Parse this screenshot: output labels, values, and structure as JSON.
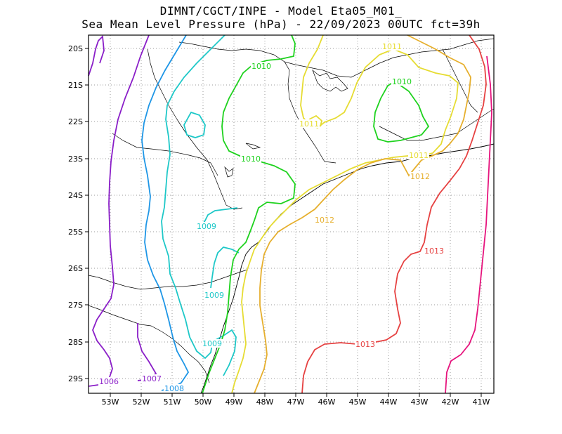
{
  "title": {
    "line1": "DIMNT/CGCT/INPE -  Model Eta05_M01_",
    "line2": "Sea Mean Level Pressure (hPa) - 22/09/2023 00UTC fct=39h"
  },
  "axes": {
    "lon_labels": [
      "53W",
      "52W",
      "51W",
      "50W",
      "49W",
      "48W",
      "47W",
      "46W",
      "45W",
      "44W",
      "43W",
      "42W",
      "41W"
    ],
    "lat_labels": [
      "20S",
      "21S",
      "22S",
      "23S",
      "24S",
      "25S",
      "26S",
      "27S",
      "28S",
      "29S"
    ]
  },
  "colors": {
    "c1006": "#8a1ec8",
    "c1007": "#8a1ec8",
    "c1008": "#1e96e6",
    "c1009": "#1ec8c8",
    "c1010": "#1ed21e",
    "c1011": "#e6dc32",
    "c1012": "#e6af2d",
    "c1013": "#e64141",
    "c1014": "#e6147d",
    "border": "#000000"
  },
  "contour_labels": [
    {
      "id": "l1006",
      "text": "1006",
      "level": "c1006"
    },
    {
      "id": "l1007",
      "text": "1007",
      "level": "c1007"
    },
    {
      "id": "l1008",
      "text": "1008",
      "level": "c1008"
    },
    {
      "id": "l1009a",
      "text": "1009",
      "level": "c1009"
    },
    {
      "id": "l1009b",
      "text": "1009",
      "level": "c1009"
    },
    {
      "id": "l1009c",
      "text": "1009",
      "level": "c1009"
    },
    {
      "id": "l1010a",
      "text": "1010",
      "level": "c1010"
    },
    {
      "id": "l1010b",
      "text": "1010",
      "level": "c1010"
    },
    {
      "id": "l1010c",
      "text": "1010",
      "level": "c1010"
    },
    {
      "id": "l1011a",
      "text": "1011",
      "level": "c1011"
    },
    {
      "id": "l1011b",
      "text": "1011",
      "level": "c1011"
    },
    {
      "id": "l1011c",
      "text": "1011",
      "level": "c1011"
    },
    {
      "id": "l1012a",
      "text": "1012",
      "level": "c1012"
    },
    {
      "id": "l1012b",
      "text": "1012",
      "level": "c1012"
    },
    {
      "id": "l1013a",
      "text": "1013",
      "level": "c1013"
    },
    {
      "id": "l1013b",
      "text": "1013",
      "level": "c1013"
    }
  ]
}
